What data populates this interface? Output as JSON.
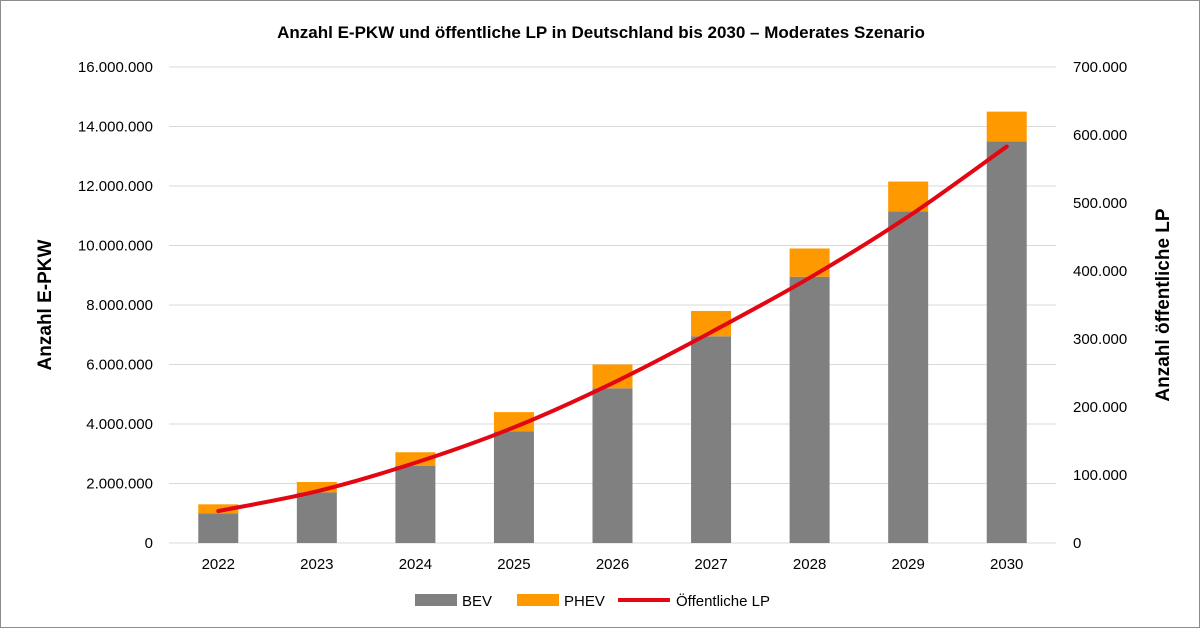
{
  "chart_data": {
    "type": "bar",
    "title": "Anzahl E-PKW und öffentliche LP in Deutschland bis 2030 – Moderates Szenario",
    "ylabel": "Anzahl E-PKW",
    "y2label": "Anzahl öffentliche LP",
    "categories": [
      "2022",
      "2023",
      "2024",
      "2025",
      "2026",
      "2027",
      "2028",
      "2029",
      "2030"
    ],
    "ylim": [
      0,
      16000000
    ],
    "y2lim": [
      0,
      700000
    ],
    "yticks": [
      "0",
      "2.000.000",
      "4.000.000",
      "6.000.000",
      "8.000.000",
      "10.000.000",
      "12.000.000",
      "14.000.000",
      "16.000.000"
    ],
    "y2ticks": [
      "0",
      "100.000",
      "200.000",
      "300.000",
      "400.000",
      "500.000",
      "600.000",
      "700.000"
    ],
    "stacked": true,
    "grid": true,
    "legend_position": "bottom",
    "series": [
      {
        "name": "BEV",
        "type": "bar",
        "axis": "left",
        "color": "#808080",
        "values": [
          1000000,
          1700000,
          2600000,
          3750000,
          5200000,
          6950000,
          8950000,
          11150000,
          13500000
        ]
      },
      {
        "name": "PHEV",
        "type": "bar",
        "axis": "left",
        "color": "#ff9900",
        "values": [
          300000,
          350000,
          450000,
          650000,
          800000,
          850000,
          950000,
          1000000,
          1000000
        ]
      },
      {
        "name": "Öffentliche LP",
        "type": "line",
        "axis": "right",
        "color": "#e30613",
        "values": [
          47000,
          76000,
          118000,
          170000,
          235000,
          310000,
          390000,
          480000,
          583000
        ]
      }
    ]
  }
}
